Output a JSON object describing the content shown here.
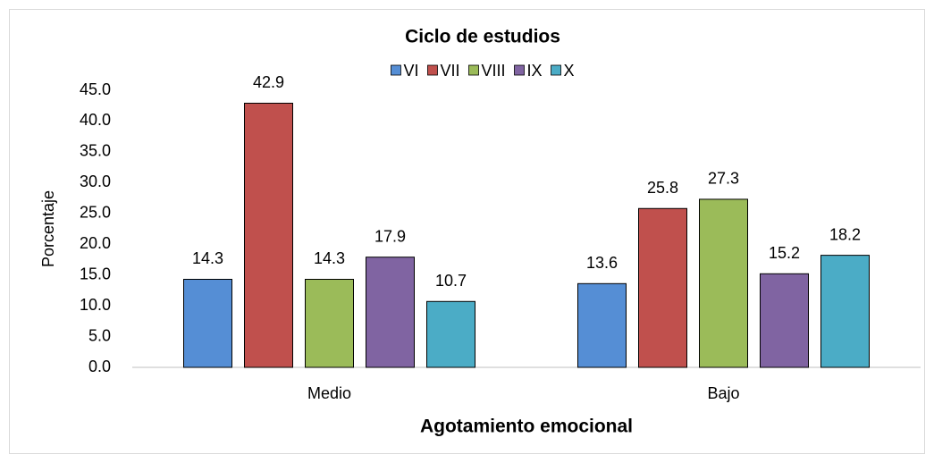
{
  "chart_data": {
    "type": "bar",
    "title": "Ciclo de estudios",
    "x_label": "Agotamiento emocional",
    "y_label": "Porcentaje",
    "categories": [
      "Medio",
      "Bajo"
    ],
    "series": [
      {
        "name": "VI",
        "color": "#558ed5",
        "values": [
          14.3,
          13.6
        ]
      },
      {
        "name": "VII",
        "color": "#c0504d",
        "values": [
          42.9,
          25.8
        ]
      },
      {
        "name": "VIII",
        "color": "#9bbb59",
        "values": [
          14.3,
          27.3
        ]
      },
      {
        "name": "IX",
        "color": "#8064a2",
        "values": [
          17.9,
          15.2
        ]
      },
      {
        "name": "X",
        "color": "#4bacc6",
        "values": [
          10.7,
          18.2
        ]
      }
    ],
    "ylim": [
      0,
      45
    ],
    "yticks": [
      {
        "value": 0,
        "label": "0.0"
      },
      {
        "value": 5,
        "label": "5.0"
      },
      {
        "value": 10,
        "label": "10.0"
      },
      {
        "value": 15,
        "label": "15.0"
      },
      {
        "value": 20,
        "label": "20.0"
      },
      {
        "value": 25,
        "label": "25.0"
      },
      {
        "value": 30,
        "label": "30.0"
      },
      {
        "value": 35,
        "label": "35.0"
      },
      {
        "value": 40,
        "label": "40.0"
      },
      {
        "value": 45,
        "label": "45.0"
      }
    ],
    "legend": "top",
    "grid": false
  }
}
